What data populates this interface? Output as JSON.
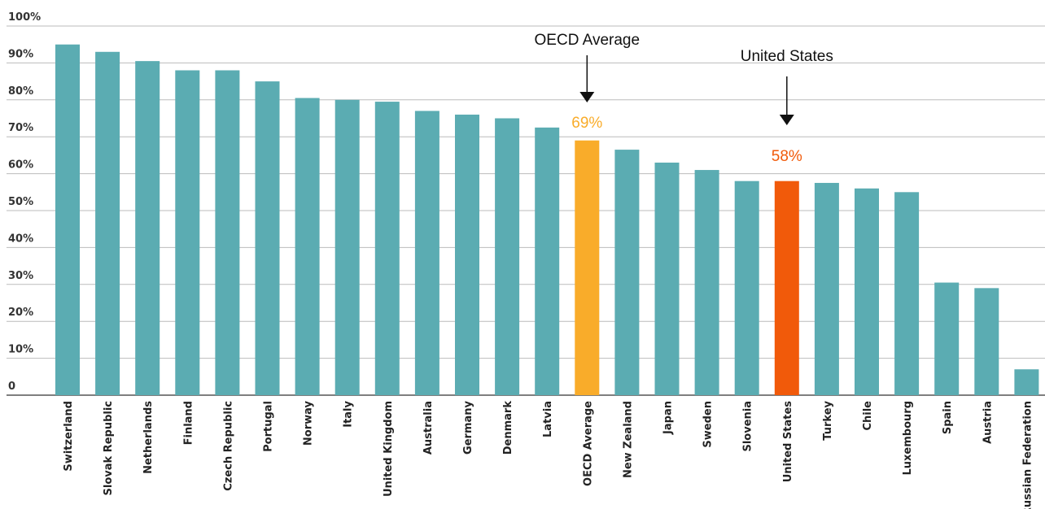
{
  "chart_data": {
    "type": "bar",
    "title": "",
    "xlabel": "",
    "ylabel": "",
    "ylim": [
      0,
      100
    ],
    "yticks": [
      0,
      10,
      20,
      30,
      40,
      50,
      60,
      70,
      80,
      90,
      100
    ],
    "ytick_labels": [
      "0",
      "10%",
      "20%",
      "30%",
      "40%",
      "50%",
      "60%",
      "70%",
      "80%",
      "90%",
      "100%"
    ],
    "grid": true,
    "categories": [
      "Switzerland",
      "Slovak Republic",
      "Netherlands",
      "Finland",
      "Czech Republic",
      "Portugal",
      "Norway",
      "Italy",
      "United Kingdom",
      "Australia",
      "Germany",
      "Denmark",
      "Latvia",
      "OECD Average",
      "New Zealand",
      "Japan",
      "Sweden",
      "Slovenia",
      "United States",
      "Turkey",
      "Chile",
      "Luxembourg",
      "Spain",
      "Austria",
      "Russian Federation"
    ],
    "values": [
      95,
      93,
      90.5,
      88,
      88,
      85,
      80.5,
      80,
      79.5,
      77,
      76,
      75,
      72.5,
      69,
      66.5,
      63,
      61,
      58,
      58,
      57.5,
      56,
      55,
      30.5,
      29,
      7
    ],
    "colors": {
      "default": "#5bacb2",
      "OECD Average": "#f9ac2a",
      "United States": "#f15a0a",
      "grid": "#bbbbbb",
      "axis": "#555555"
    },
    "annotations": [
      {
        "target": "OECD Average",
        "label": "OECD Average",
        "value_label": "69%",
        "value_color": "#f9ac2a"
      },
      {
        "target": "United States",
        "label": "United States",
        "value_label": "58%",
        "value_color": "#f15a0a"
      }
    ]
  }
}
